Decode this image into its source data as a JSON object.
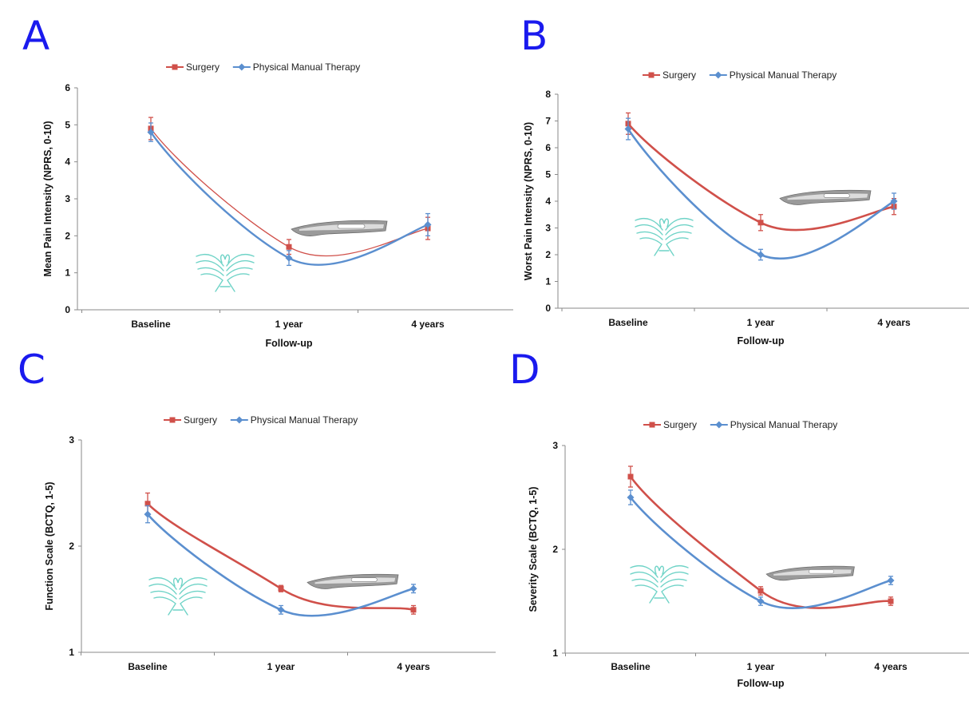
{
  "figure": {
    "colors": {
      "surgery": "#d0504a",
      "pmt": "#5b8fcf",
      "panel_letter": "#1a1aee",
      "hands_icon": "#6fd3c7"
    }
  },
  "chart_data": [
    {
      "panel": "A",
      "type": "line",
      "categories": [
        "Baseline",
        "1 year",
        "4 years"
      ],
      "xlabel": "Follow-up",
      "ylabel": "Mean Pain Intensity (NPRS, 0-10)",
      "ylim": [
        0,
        6
      ],
      "yticks": [
        0,
        1,
        2,
        3,
        4,
        5,
        6
      ],
      "grid": false,
      "legend": "top",
      "series": [
        {
          "name": "Surgery",
          "values": [
            4.9,
            1.7,
            2.2
          ],
          "errors": [
            0.3,
            0.2,
            0.3
          ]
        },
        {
          "name": "Physical Manual Therapy",
          "values": [
            4.8,
            1.4,
            2.3
          ],
          "errors": [
            0.25,
            0.2,
            0.3
          ]
        }
      ]
    },
    {
      "panel": "B",
      "type": "line",
      "categories": [
        "Baseline",
        "1 year",
        "4 years"
      ],
      "xlabel": "Follow-up",
      "ylabel": "Worst Pain Intensity (NPRS, 0-10)",
      "ylim": [
        0,
        8
      ],
      "yticks": [
        0,
        1,
        2,
        3,
        4,
        5,
        6,
        7,
        8
      ],
      "grid": false,
      "legend": "top",
      "series": [
        {
          "name": "Surgery",
          "values": [
            6.9,
            3.2,
            3.8
          ],
          "errors": [
            0.4,
            0.3,
            0.3
          ]
        },
        {
          "name": "Physical Manual Therapy",
          "values": [
            6.7,
            2.0,
            4.0
          ],
          "errors": [
            0.4,
            0.2,
            0.3
          ]
        }
      ]
    },
    {
      "panel": "C",
      "type": "line",
      "categories": [
        "Baseline",
        "1 year",
        "4 years"
      ],
      "xlabel": "",
      "ylabel": "Function Scale (BCTQ, 1-5)",
      "ylim": [
        1,
        3
      ],
      "yticks": [
        1,
        2,
        3
      ],
      "grid": false,
      "legend": "top",
      "series": [
        {
          "name": "Surgery",
          "values": [
            2.4,
            1.6,
            1.4
          ],
          "errors": [
            0.1,
            0.03,
            0.04
          ]
        },
        {
          "name": "Physical Manual Therapy",
          "values": [
            2.3,
            1.4,
            1.6
          ],
          "errors": [
            0.08,
            0.04,
            0.04
          ]
        }
      ]
    },
    {
      "panel": "D",
      "type": "line",
      "categories": [
        "Baseline",
        "1 year",
        "4 years"
      ],
      "xlabel": "Follow-up",
      "ylabel": "Severity Scale (BCTQ, 1-5)",
      "ylim": [
        1,
        3
      ],
      "yticks": [
        1,
        2,
        3
      ],
      "grid": false,
      "legend": "top",
      "series": [
        {
          "name": "Surgery",
          "values": [
            2.7,
            1.6,
            1.5
          ],
          "errors": [
            0.1,
            0.04,
            0.04
          ]
        },
        {
          "name": "Physical Manual Therapy",
          "values": [
            2.5,
            1.5,
            1.7
          ],
          "errors": [
            0.07,
            0.04,
            0.04
          ]
        }
      ]
    }
  ]
}
